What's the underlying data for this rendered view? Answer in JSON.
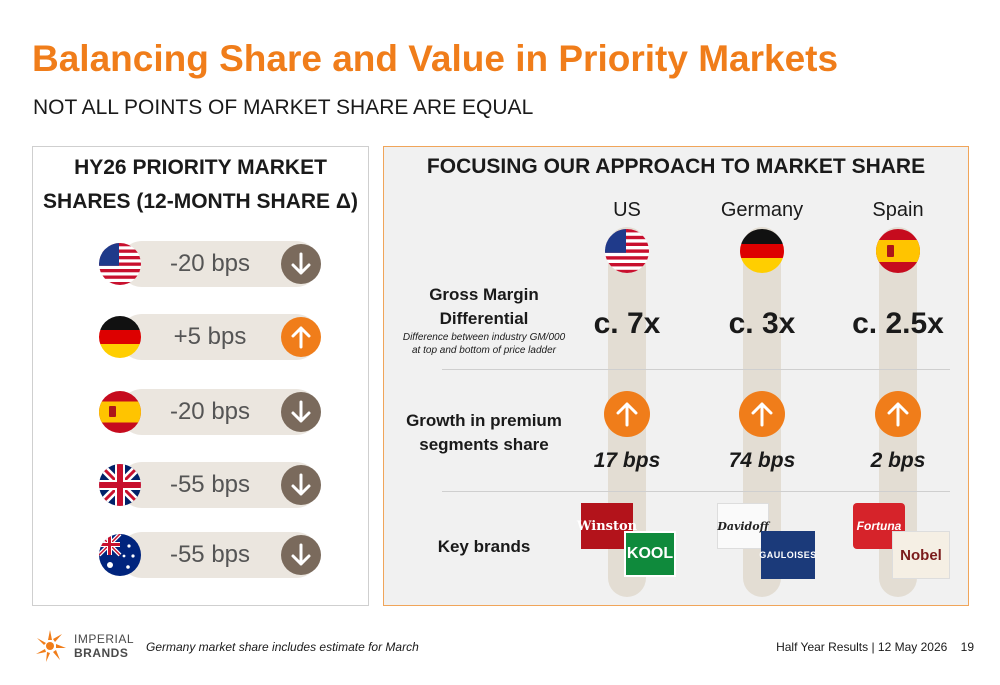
{
  "header": {
    "title": "Balancing Share and Value in Priority Markets",
    "subtitle": "NOT ALL POINTS OF MARKET SHARE ARE EQUAL"
  },
  "left_panel": {
    "heading_line1": "HY26 PRIORITY MARKET",
    "heading_line2": "SHARES (12-MONTH SHARE Δ)",
    "rows": [
      {
        "flag": "us-flag",
        "value": "-20 bps",
        "direction": "down",
        "color": "#7a6a5c"
      },
      {
        "flag": "germany-flag",
        "value": "+5 bps",
        "direction": "up",
        "color": "#f07d1a"
      },
      {
        "flag": "spain-flag",
        "value": "-20 bps",
        "direction": "down",
        "color": "#7a6a5c"
      },
      {
        "flag": "uk-flag",
        "value": "-55 bps",
        "direction": "down",
        "color": "#7a6a5c"
      },
      {
        "flag": "australia-flag",
        "value": "-55 bps",
        "direction": "down",
        "color": "#7a6a5c"
      }
    ]
  },
  "right_panel": {
    "heading": "FOCUSING OUR APPROACH TO MARKET SHARE",
    "countries": [
      "US",
      "Germany",
      "Spain"
    ],
    "gross_margin": {
      "label_line1": "Gross Margin",
      "label_line2": "Differential",
      "desc_line1": "Difference between industry GM/000",
      "desc_line2": "at top and bottom of price ladder",
      "values": [
        "c. 7x",
        "c. 3x",
        "c. 2.5x"
      ]
    },
    "premium_growth": {
      "label_line1": "Growth in premium",
      "label_line2": "segments share",
      "values": [
        "17 bps",
        "74 bps",
        "2 bps"
      ]
    },
    "key_brands": {
      "label": "Key brands",
      "brands": [
        "Winston",
        "KOOL",
        "Davidoff",
        "GAULOISES",
        "Fortuna",
        "Nobel"
      ]
    }
  },
  "footer": {
    "logo_line1": "IMPERIAL",
    "logo_line2": "BRANDS",
    "footnote": "Germany market share includes estimate for March",
    "right_text": "Half Year Results | 12 May 2026",
    "page_number": "19"
  },
  "colors": {
    "accent": "#f07d1a",
    "down": "#7a6a5c",
    "pill": "#ebe6df"
  }
}
